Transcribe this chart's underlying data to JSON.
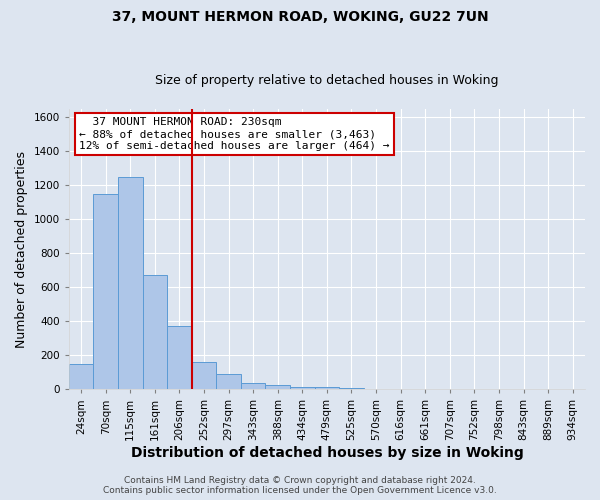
{
  "title_line1": "37, MOUNT HERMON ROAD, WOKING, GU22 7UN",
  "title_line2": "Size of property relative to detached houses in Woking",
  "xlabel": "Distribution of detached houses by size in Woking",
  "ylabel": "Number of detached properties",
  "categories": [
    "24sqm",
    "70sqm",
    "115sqm",
    "161sqm",
    "206sqm",
    "252sqm",
    "297sqm",
    "343sqm",
    "388sqm",
    "434sqm",
    "479sqm",
    "525sqm",
    "570sqm",
    "616sqm",
    "661sqm",
    "707sqm",
    "752sqm",
    "798sqm",
    "843sqm",
    "889sqm",
    "934sqm"
  ],
  "values": [
    150,
    1150,
    1250,
    670,
    375,
    160,
    90,
    35,
    25,
    15,
    15,
    10,
    0,
    0,
    0,
    0,
    0,
    0,
    0,
    0,
    0
  ],
  "bar_color": "#aec6e8",
  "bar_edge_color": "#5b9bd5",
  "vline_x": 4.5,
  "vline_color": "#cc0000",
  "annotation_line1": "  37 MOUNT HERMON ROAD: 230sqm",
  "annotation_line2": "← 88% of detached houses are smaller (3,463)",
  "annotation_line3": "12% of semi-detached houses are larger (464) →",
  "annotation_box_color": "#ffffff",
  "annotation_box_edge": "#cc0000",
  "ylim": [
    0,
    1650
  ],
  "yticks": [
    0,
    200,
    400,
    600,
    800,
    1000,
    1200,
    1400,
    1600
  ],
  "background_color": "#dde5f0",
  "plot_bg_color": "#dde5f0",
  "footer_line1": "Contains HM Land Registry data © Crown copyright and database right 2024.",
  "footer_line2": "Contains public sector information licensed under the Open Government Licence v3.0.",
  "title_fontsize": 10,
  "subtitle_fontsize": 9,
  "axis_label_fontsize": 9,
  "tick_fontsize": 7.5,
  "annotation_fontsize": 8,
  "footer_fontsize": 6.5
}
